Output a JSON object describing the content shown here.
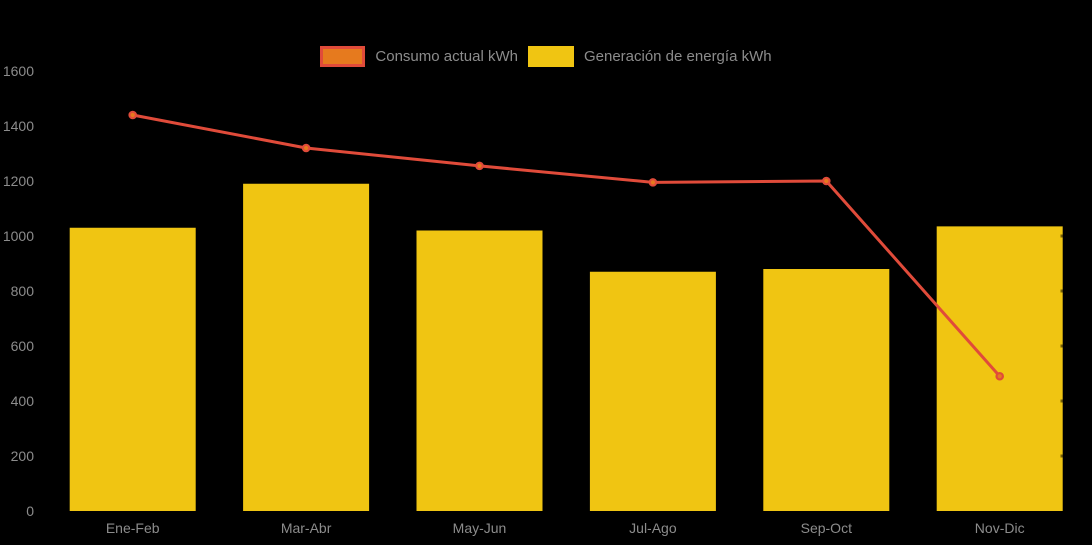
{
  "background_color": "#000000",
  "legend": {
    "items": [
      {
        "label": "Consumo actual kWh",
        "series_type": "line",
        "swatch_fill": "#E67A1E",
        "swatch_border": "#E04B3A"
      },
      {
        "label": "Generación de energía kWh",
        "series_type": "bar",
        "swatch_fill": "#F0C512"
      }
    ]
  },
  "chart_data": {
    "type": "combo",
    "categories": [
      "Ene-Feb",
      "Mar-Abr",
      "May-Jun",
      "Jul-Ago",
      "Sep-Oct",
      "Nov-Dic"
    ],
    "series": [
      {
        "name": "Consumo actual kWh",
        "type": "line",
        "color": "#E04B3A",
        "marker_color": "#E67A1E",
        "values": [
          1440,
          1320,
          1255,
          1195,
          1200,
          490
        ]
      },
      {
        "name": "Generación de energía kWh",
        "type": "bar",
        "color": "#F0C512",
        "values": [
          1030,
          1190,
          1020,
          870,
          880,
          1035
        ]
      }
    ],
    "title": "",
    "xlabel": "",
    "ylabel": "",
    "ylim": [
      0,
      1600
    ],
    "y_tick_step": 200,
    "y_tick_labels": [
      "0",
      "200",
      "400",
      "600",
      "800",
      "1000",
      "1200",
      "1400",
      "1600"
    ],
    "grid": false,
    "legend_position": "top-center",
    "axis_text_color": "#8C8C8C"
  }
}
